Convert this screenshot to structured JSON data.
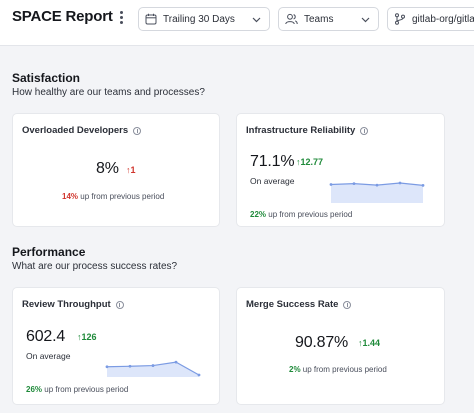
{
  "header": {
    "title": "SPACE Report",
    "filters": {
      "date": "Trailing 30 Days",
      "teams": "Teams",
      "repo": "gitlab-org/gitlab"
    }
  },
  "sections": {
    "satisfaction": {
      "title": "Satisfaction",
      "subtitle": "How healthy are our teams and processes?"
    },
    "performance": {
      "title": "Performance",
      "subtitle": "What are our process success rates?"
    }
  },
  "cards": {
    "overloaded": {
      "title": "Overloaded Developers",
      "value": "8%",
      "delta": "1",
      "delta_color": "#d0342c",
      "footer_pct": "14%",
      "footer_text": " up from previous period"
    },
    "infra": {
      "title": "Infrastructure Reliability",
      "value": "71.1%",
      "delta": "12.77",
      "sub": "On average",
      "footer_pct": "22%",
      "footer_text": " up from previous period",
      "trend": [
        0.55,
        0.58,
        0.53,
        0.6,
        0.52
      ]
    },
    "review": {
      "title": "Review Throughput",
      "value": "602.4",
      "delta": "126",
      "sub": "On average",
      "footer_pct": "26%",
      "footer_text": " up from previous period",
      "trend": [
        0.36,
        0.38,
        0.41,
        0.56,
        0.0
      ]
    },
    "merge": {
      "title": "Merge Success Rate",
      "value": "90.87%",
      "delta": "1.44",
      "footer_pct": "2%",
      "footer_text": " up from previous period"
    }
  },
  "colors": {
    "accent_line": "#7b9be3",
    "accent_fill": "#dde6fa",
    "up_green": "#1f8a3a",
    "up_red": "#d0342c"
  }
}
